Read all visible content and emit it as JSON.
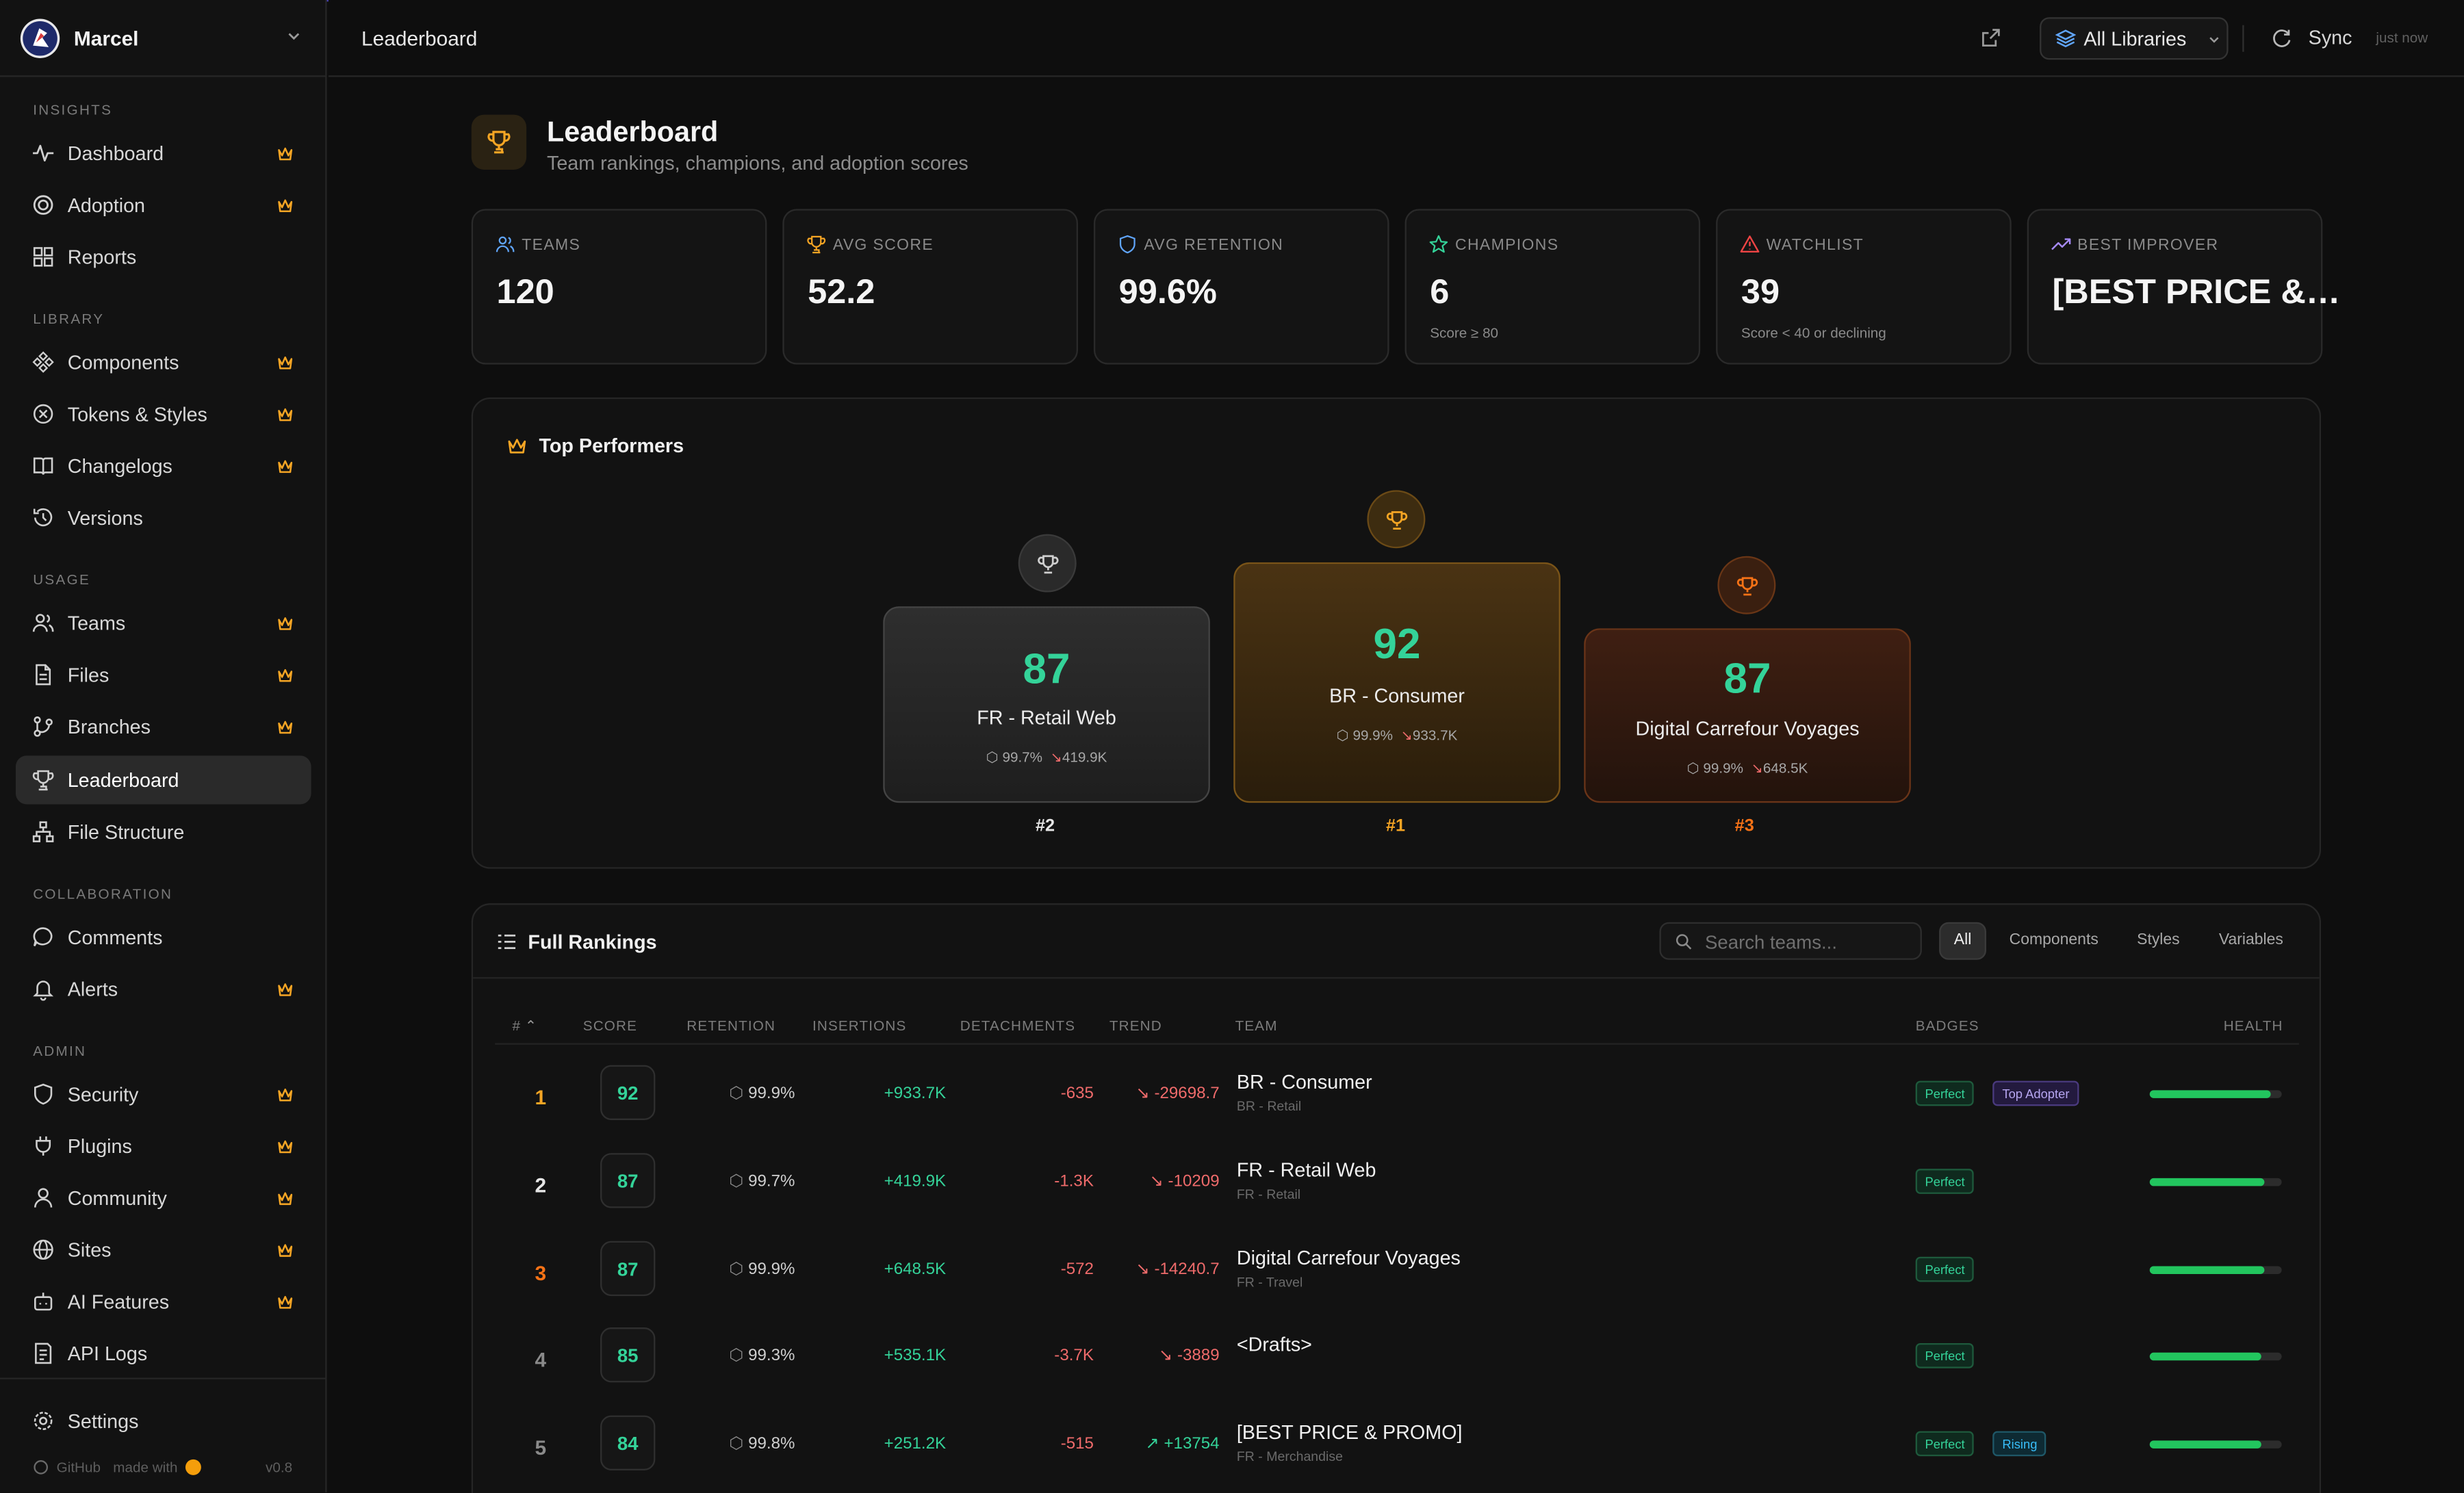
{
  "workspace": {
    "name": "Marcel"
  },
  "sidebar": {
    "sections": [
      "INSIGHTS",
      "LIBRARY",
      "USAGE",
      "COLLABORATION",
      "ADMIN"
    ],
    "items": [
      {
        "label": "Dashboard",
        "icon": "activity-icon",
        "premium": true
      },
      {
        "label": "Adoption",
        "icon": "target-icon",
        "premium": true
      },
      {
        "label": "Reports",
        "icon": "grid-icon",
        "premium": false
      },
      {
        "label": "Components",
        "icon": "components-icon",
        "premium": true
      },
      {
        "label": "Tokens & Styles",
        "icon": "variable-icon",
        "premium": true
      },
      {
        "label": "Changelogs",
        "icon": "book-icon",
        "premium": true
      },
      {
        "label": "Versions",
        "icon": "history-icon",
        "premium": false
      },
      {
        "label": "Teams",
        "icon": "users-icon",
        "premium": true
      },
      {
        "label": "Files",
        "icon": "file-icon",
        "premium": true
      },
      {
        "label": "Branches",
        "icon": "branch-icon",
        "premium": true
      },
      {
        "label": "Leaderboard",
        "icon": "trophy-icon",
        "premium": false,
        "active": true
      },
      {
        "label": "File Structure",
        "icon": "structure-icon",
        "premium": false
      },
      {
        "label": "Comments",
        "icon": "comment-icon",
        "premium": false
      },
      {
        "label": "Alerts",
        "icon": "bell-icon",
        "premium": true
      },
      {
        "label": "Security",
        "icon": "shield-icon",
        "premium": true
      },
      {
        "label": "Plugins",
        "icon": "plug-icon",
        "premium": true
      },
      {
        "label": "Community",
        "icon": "user-icon",
        "premium": true
      },
      {
        "label": "Sites",
        "icon": "globe-icon",
        "premium": true
      },
      {
        "label": "AI Features",
        "icon": "bot-icon",
        "premium": true
      },
      {
        "label": "API Logs",
        "icon": "logs-icon",
        "premium": false
      }
    ],
    "settings_label": "Settings",
    "footer": {
      "github": "GitHub",
      "made_with": "made with",
      "version": "v0.8"
    }
  },
  "header": {
    "title": "Leaderboard",
    "library_select": "All Libraries",
    "sync_label": "Sync",
    "sync_time": "just now"
  },
  "page": {
    "title": "Leaderboard",
    "subtitle": "Team rankings, champions, and adoption scores"
  },
  "stats": [
    {
      "label": "TEAMS",
      "value": "120",
      "note": "",
      "icon": "users-icon",
      "color": "#60a5fa"
    },
    {
      "label": "AVG SCORE",
      "value": "52.2",
      "note": "",
      "icon": "trophy-icon",
      "color": "#f5a524"
    },
    {
      "label": "AVG RETENTION",
      "value": "99.6%",
      "note": "",
      "icon": "shield-icon",
      "color": "#60a5fa"
    },
    {
      "label": "CHAMPIONS",
      "value": "6",
      "note": "Score ≥ 80",
      "icon": "star-icon",
      "color": "#34d399"
    },
    {
      "label": "WATCHLIST",
      "value": "39",
      "note": "Score < 40 or declining",
      "icon": "alert-triangle-icon",
      "color": "#ef4444"
    },
    {
      "label": "BEST IMPROVER",
      "value": "[BEST PRICE &…",
      "note": "",
      "icon": "trending-up-icon",
      "color": "#a78bfa"
    }
  ],
  "top_performers": {
    "title": "Top Performers",
    "podium": [
      {
        "rank": "#2",
        "score": "87",
        "team": "FR - Retail Web",
        "retention": "99.7%",
        "trend": "419.9K"
      },
      {
        "rank": "#1",
        "score": "92",
        "team": "BR - Consumer",
        "retention": "99.9%",
        "trend": "933.7K"
      },
      {
        "rank": "#3",
        "score": "87",
        "team": "Digital Carrefour Voyages",
        "retention": "99.9%",
        "trend": "648.5K"
      }
    ]
  },
  "rankings": {
    "title": "Full Rankings",
    "search_placeholder": "Search teams...",
    "filters": [
      "All",
      "Components",
      "Styles",
      "Variables"
    ],
    "active_filter": "All",
    "columns": [
      "#",
      "SCORE",
      "RETENTION",
      "INSERTIONS",
      "DETACHMENTS",
      "TREND",
      "TEAM",
      "BADGES",
      "HEALTH"
    ],
    "rows": [
      {
        "rank": "1",
        "score": "92",
        "retention": "99.9%",
        "insertions": "+933.7K",
        "detachments": "-635",
        "trend": "-29698.7",
        "trend_dir": "down",
        "team": "BR - Consumer",
        "sub": "BR - Retail",
        "badges": [
          {
            "label": "Perfect",
            "kind": "pf"
          },
          {
            "label": "Top Adopter",
            "kind": "ta"
          }
        ],
        "health": 0.92
      },
      {
        "rank": "2",
        "score": "87",
        "retention": "99.7%",
        "insertions": "+419.9K",
        "detachments": "-1.3K",
        "trend": "-10209",
        "trend_dir": "down",
        "team": "FR - Retail Web",
        "sub": "FR - Retail",
        "badges": [
          {
            "label": "Perfect",
            "kind": "pf"
          }
        ],
        "health": 0.87
      },
      {
        "rank": "3",
        "score": "87",
        "retention": "99.9%",
        "insertions": "+648.5K",
        "detachments": "-572",
        "trend": "-14240.7",
        "trend_dir": "down",
        "team": "Digital Carrefour Voyages",
        "sub": "FR - Travel",
        "badges": [
          {
            "label": "Perfect",
            "kind": "pf"
          }
        ],
        "health": 0.87
      },
      {
        "rank": "4",
        "score": "85",
        "retention": "99.3%",
        "insertions": "+535.1K",
        "detachments": "-3.7K",
        "trend": "-3889",
        "trend_dir": "down",
        "team": "<Drafts>",
        "sub": "",
        "badges": [
          {
            "label": "Perfect",
            "kind": "pf"
          }
        ],
        "health": 0.85
      },
      {
        "rank": "5",
        "score": "84",
        "retention": "99.8%",
        "insertions": "+251.2K",
        "detachments": "-515",
        "trend": "+13754",
        "trend_dir": "up",
        "team": "[BEST PRICE & PROMO]",
        "sub": "FR - Merchandise",
        "badges": [
          {
            "label": "Perfect",
            "kind": "pf"
          },
          {
            "label": "Rising",
            "kind": "rs"
          }
        ],
        "health": 0.84
      }
    ]
  },
  "colors": {
    "accent": "#f5a524",
    "positive": "#34d399",
    "negative": "#ef6b6b",
    "bronze": "#f97316"
  }
}
